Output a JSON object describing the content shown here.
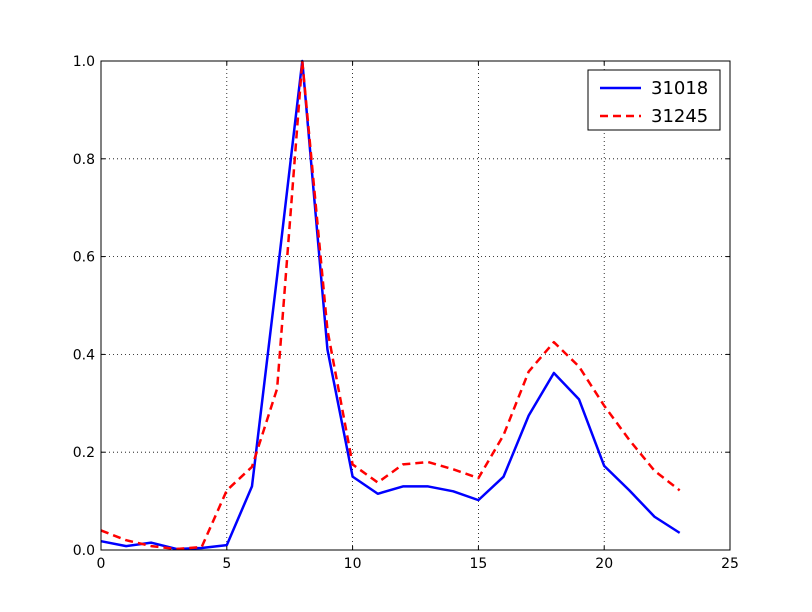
{
  "chart_data": {
    "type": "line",
    "title": "",
    "xlabel": "",
    "ylabel": "",
    "xlim": [
      0,
      25
    ],
    "ylim": [
      0.0,
      1.0
    ],
    "x_ticks": [
      0,
      5,
      10,
      15,
      20,
      25
    ],
    "y_ticks": [
      0.0,
      0.2,
      0.4,
      0.6,
      0.8,
      1.0
    ],
    "x_tick_labels": [
      "0",
      "5",
      "10",
      "15",
      "20",
      "25"
    ],
    "y_tick_labels": [
      "0.0",
      "0.2",
      "0.4",
      "0.6",
      "0.8",
      "1.0"
    ],
    "grid": true,
    "legend_position": "top-right",
    "x": [
      0,
      1,
      2,
      3,
      4,
      5,
      6,
      7,
      8,
      9,
      10,
      11,
      12,
      13,
      14,
      15,
      16,
      17,
      18,
      19,
      20,
      21,
      22,
      23
    ],
    "series": [
      {
        "name": "31018",
        "color": "#0000ff",
        "style": "solid",
        "values": [
          0.018,
          0.008,
          0.015,
          0.002,
          0.004,
          0.01,
          0.13,
          0.56,
          1.0,
          0.41,
          0.15,
          0.115,
          0.13,
          0.13,
          0.12,
          0.102,
          0.15,
          0.275,
          0.362,
          0.308,
          0.172,
          0.122,
          0.068,
          0.035
        ]
      },
      {
        "name": "31245",
        "color": "#ff0000",
        "style": "dashed",
        "values": [
          0.04,
          0.02,
          0.008,
          0.002,
          0.006,
          0.122,
          0.17,
          0.33,
          1.0,
          0.45,
          0.175,
          0.138,
          0.175,
          0.18,
          0.165,
          0.147,
          0.235,
          0.365,
          0.425,
          0.375,
          0.295,
          0.225,
          0.162,
          0.122
        ]
      }
    ]
  }
}
